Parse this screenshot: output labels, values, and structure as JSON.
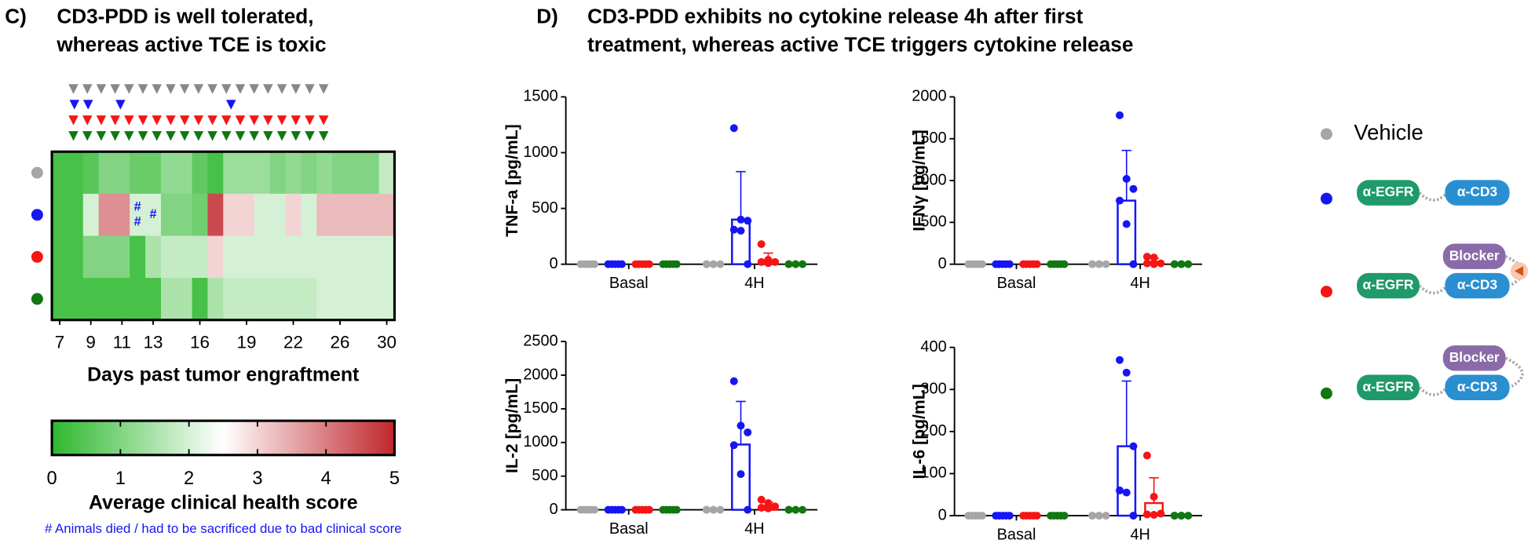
{
  "panels": [
    {
      "label": "C)",
      "title": [
        "CD3-PDD is well tolerated,",
        "whereas active TCE is toxic"
      ]
    },
    {
      "label": "D)",
      "title": [
        "CD3-PDD exhibits no cytokine release 4h after first",
        "treatment, whereas active TCE triggers cytokine release"
      ]
    }
  ],
  "chart_data": [
    {
      "type": "heatmap",
      "categories": [
        "7",
        null,
        "9",
        null,
        "11",
        null,
        "13",
        null,
        null,
        "16",
        null,
        null,
        "19",
        null,
        null,
        "22",
        null,
        null,
        "26",
        null,
        null,
        "30"
      ],
      "xlabel": "Days past tumor engraftment",
      "zlim": [
        0,
        5
      ],
      "colors": [
        "#2eb82e",
        "#ffffff",
        "#c0272d"
      ],
      "rows": [
        {
          "color": "#a6a6a6",
          "values": [
            0.3,
            0.3,
            0.5,
            1.0,
            1.0,
            0.7,
            0.7,
            1.2,
            1.2,
            0.6,
            0.3,
            1.3,
            1.3,
            1.3,
            1.0,
            1.2,
            1.0,
            1.2,
            1.0,
            1.0,
            1.0,
            1.8
          ],
          "death_marks": [
            null,
            null,
            null,
            null,
            null,
            null,
            null,
            null,
            null,
            null,
            null,
            null,
            null,
            null,
            null,
            null,
            null,
            null,
            null,
            null,
            null,
            null
          ]
        },
        {
          "color": "#1515f5",
          "values": [
            0.3,
            0.3,
            2.0,
            3.8,
            3.8,
            2.0,
            2.0,
            1.0,
            1.0,
            0.8,
            4.6,
            3.0,
            3.0,
            2.0,
            2.0,
            3.0,
            2.0,
            3.3,
            3.3,
            3.3,
            3.3,
            3.3
          ],
          "death_marks": [
            null,
            null,
            null,
            null,
            null,
            [
              "#",
              "#"
            ],
            [
              "#"
            ],
            null,
            null,
            null,
            null,
            null,
            null,
            null,
            null,
            null,
            null,
            null,
            null,
            null,
            null,
            null
          ]
        },
        {
          "color": "#f51515",
          "values": [
            0.3,
            0.3,
            1.0,
            1.0,
            1.0,
            0.3,
            1.5,
            1.8,
            1.8,
            1.8,
            3.0,
            2.0,
            2.0,
            2.0,
            2.0,
            2.0,
            2.0,
            2.0,
            2.0,
            2.0,
            2.0,
            2.0
          ],
          "death_marks": [
            null,
            null,
            null,
            null,
            null,
            null,
            null,
            null,
            null,
            null,
            null,
            null,
            null,
            null,
            null,
            null,
            null,
            null,
            null,
            null,
            null,
            null
          ]
        },
        {
          "color": "#117711",
          "values": [
            0.3,
            0.3,
            0.3,
            0.3,
            0.3,
            0.3,
            0.3,
            1.5,
            1.5,
            0.3,
            1.5,
            1.8,
            1.8,
            1.8,
            1.8,
            1.8,
            1.8,
            2.0,
            2.0,
            2.0,
            2.0,
            2.0
          ],
          "death_marks": [
            null,
            null,
            null,
            null,
            null,
            null,
            null,
            null,
            null,
            null,
            null,
            null,
            null,
            null,
            null,
            null,
            null,
            null,
            null,
            null,
            null,
            null
          ]
        }
      ],
      "colorbar": {
        "label": "Average clinical health score",
        "ticks": [
          0,
          1,
          2,
          3,
          4,
          5
        ]
      },
      "footnote": "# Animals died / had to be sacrificed due to bad clinical score"
    },
    {
      "type": "dotbar",
      "ylabel": "TNF-a [pg/mL]",
      "categories": [
        "Basal",
        "4H"
      ],
      "ylim": [
        0,
        1500
      ],
      "yticks": [
        0,
        500,
        1000,
        1500
      ],
      "series": [
        {
          "color": "#a6a6a6",
          "values": [
            0,
            0
          ],
          "errors": [
            0,
            0
          ],
          "points": [
            [
              0,
              0,
              0,
              0,
              0
            ],
            [
              0,
              0,
              0,
              0,
              0
            ]
          ]
        },
        {
          "color": "#1515f5",
          "values": [
            0,
            400
          ],
          "errors": [
            0,
            430
          ],
          "points": [
            [
              0,
              0,
              0,
              0,
              0
            ],
            [
              1220,
              400,
              390,
              310,
              300,
              0
            ]
          ]
        },
        {
          "color": "#f51515",
          "values": [
            0,
            30
          ],
          "errors": [
            0,
            70
          ],
          "points": [
            [
              0,
              0,
              0,
              0,
              0
            ],
            [
              180,
              40,
              20,
              20,
              10
            ]
          ]
        },
        {
          "color": "#117711",
          "values": [
            0,
            0
          ],
          "errors": [
            0,
            0
          ],
          "points": [
            [
              0,
              0,
              0,
              0,
              0
            ],
            [
              0,
              0,
              0,
              0,
              0
            ]
          ]
        }
      ]
    },
    {
      "type": "dotbar",
      "ylabel": "IFNγ [pg/mL]",
      "categories": [
        "Basal",
        "4H"
      ],
      "ylim": [
        0,
        2000
      ],
      "yticks": [
        0,
        500,
        1000,
        1500,
        2000
      ],
      "series": [
        {
          "color": "#a6a6a6",
          "values": [
            0,
            0
          ],
          "errors": [
            0,
            0
          ],
          "points": [
            [
              0,
              0,
              0,
              0,
              0
            ],
            [
              0,
              0,
              0,
              0,
              0
            ]
          ]
        },
        {
          "color": "#1515f5",
          "values": [
            0,
            760
          ],
          "errors": [
            0,
            600
          ],
          "points": [
            [
              0,
              0,
              0,
              0,
              0
            ],
            [
              1780,
              1020,
              900,
              760,
              480,
              0
            ]
          ]
        },
        {
          "color": "#f51515",
          "values": [
            0,
            30
          ],
          "errors": [
            0,
            40
          ],
          "points": [
            [
              0,
              0,
              0,
              0,
              0
            ],
            [
              90,
              80,
              10,
              10,
              0
            ]
          ]
        },
        {
          "color": "#117711",
          "values": [
            0,
            0
          ],
          "errors": [
            0,
            0
          ],
          "points": [
            [
              0,
              0,
              0,
              0,
              0
            ],
            [
              0,
              0,
              0,
              0,
              0
            ]
          ]
        }
      ]
    },
    {
      "type": "dotbar",
      "ylabel": "IL-2 [pg/mL]",
      "categories": [
        "Basal",
        "4H"
      ],
      "ylim": [
        0,
        2500
      ],
      "yticks": [
        0,
        500,
        1000,
        1500,
        2000,
        2500
      ],
      "series": [
        {
          "color": "#a6a6a6",
          "values": [
            0,
            0
          ],
          "errors": [
            0,
            0
          ],
          "points": [
            [
              0,
              0,
              0,
              0,
              0
            ],
            [
              0,
              0,
              0,
              0,
              0
            ]
          ]
        },
        {
          "color": "#1515f5",
          "values": [
            0,
            970
          ],
          "errors": [
            0,
            640
          ],
          "points": [
            [
              0,
              0,
              0,
              0,
              0
            ],
            [
              1910,
              1250,
              1150,
              960,
              530,
              0
            ]
          ]
        },
        {
          "color": "#f51515",
          "values": [
            0,
            60
          ],
          "errors": [
            0,
            50
          ],
          "points": [
            [
              0,
              0,
              0,
              0,
              0
            ],
            [
              150,
              100,
              50,
              30,
              20
            ]
          ]
        },
        {
          "color": "#117711",
          "values": [
            0,
            0
          ],
          "errors": [
            0,
            0
          ],
          "points": [
            [
              0,
              0,
              0,
              0,
              0
            ],
            [
              0,
              0,
              0,
              0,
              0
            ]
          ]
        }
      ]
    },
    {
      "type": "dotbar",
      "ylabel": "IL-6 [pg/mL]",
      "categories": [
        "Basal",
        "4H"
      ],
      "ylim": [
        0,
        400
      ],
      "yticks": [
        0,
        100,
        200,
        300,
        400
      ],
      "series": [
        {
          "color": "#a6a6a6",
          "values": [
            0,
            0
          ],
          "errors": [
            0,
            0
          ],
          "points": [
            [
              0,
              0,
              0,
              0,
              0
            ],
            [
              0,
              0,
              0,
              0,
              0
            ]
          ]
        },
        {
          "color": "#1515f5",
          "values": [
            0,
            165
          ],
          "errors": [
            0,
            155
          ],
          "points": [
            [
              0,
              0,
              0,
              0,
              0
            ],
            [
              370,
              340,
              165,
              60,
              55,
              0
            ]
          ]
        },
        {
          "color": "#f51515",
          "values": [
            0,
            30
          ],
          "errors": [
            0,
            60
          ],
          "points": [
            [
              0,
              0,
              0,
              0,
              0
            ],
            [
              143,
              45,
              5,
              3,
              2
            ]
          ]
        },
        {
          "color": "#117711",
          "values": [
            0,
            0
          ],
          "errors": [
            0,
            0
          ],
          "points": [
            [
              0,
              0,
              0,
              0,
              0
            ],
            [
              0,
              0,
              0,
              0,
              0
            ]
          ]
        }
      ]
    }
  ],
  "legend": [
    {
      "color": "#a6a6a6",
      "label": "Vehicle"
    },
    {
      "color": "#1515f5",
      "parts": [
        "α-EGFR",
        "α-CD3"
      ]
    },
    {
      "color": "#f51515",
      "parts": [
        "α-EGFR",
        "Blocker",
        "α-CD3"
      ]
    },
    {
      "color": "#117711",
      "parts": [
        "α-EGFR",
        "Blocker",
        "α-CD3"
      ]
    }
  ]
}
